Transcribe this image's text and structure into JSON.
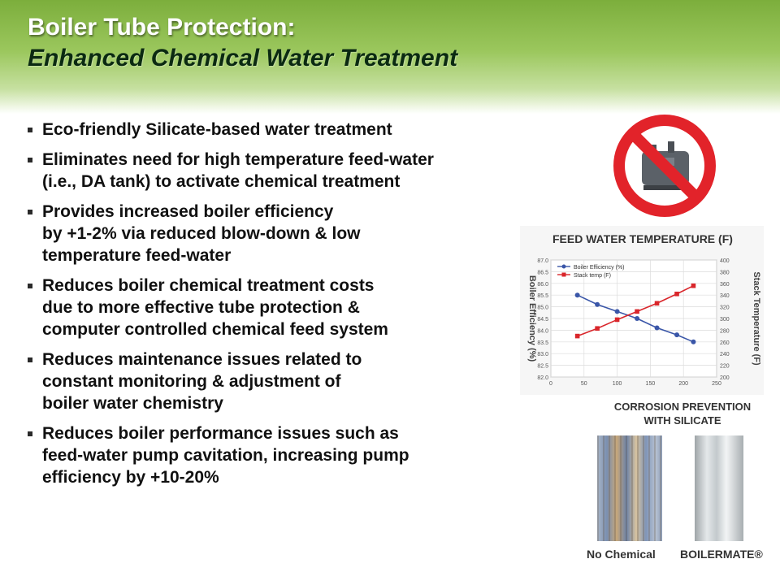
{
  "header": {
    "title_line1": "Boiler Tube Protection:",
    "title_line2": "Enhanced Chemical Water Treatment"
  },
  "bullets": [
    {
      "lines": [
        "Eco-friendly Silicate-based water treatment"
      ]
    },
    {
      "lines": [
        "Eliminates need for high temperature feed-water",
        "(i.e., DA tank) to activate chemical treatment"
      ]
    },
    {
      "lines": [
        "Provides increased boiler efficiency",
        "by +1-2% via reduced blow-down & low",
        "temperature feed-water"
      ]
    },
    {
      "lines": [
        "Reduces boiler chemical treatment costs",
        "due to more effective tube protection &",
        "computer controlled chemical feed system"
      ]
    },
    {
      "lines": [
        "Reduces maintenance issues related to",
        "constant monitoring & adjustment of",
        "boiler water chemistry"
      ]
    },
    {
      "lines": [
        "Reduces boiler performance issues such as",
        "feed-water pump cavitation, increasing pump",
        "efficiency by +10-20%"
      ]
    }
  ],
  "colors": {
    "header_green": "#8cbd4a",
    "efficiency_series": "#3a56a8",
    "stack_series": "#d9262b",
    "no_sign_red": "#e2232a"
  },
  "icons": {
    "prohibition": "no-sign-icon"
  },
  "chart_data": {
    "type": "line",
    "title": "FEED WATER TEMPERATURE (F)",
    "ylabel": "Boiler Efficiency (%)",
    "y2label": "Stack Temperature (F)",
    "x_ticks": [
      "0",
      "50",
      "100",
      "150",
      "200",
      "250"
    ],
    "y_ticks": [
      "87.0",
      "86.5",
      "86.0",
      "85.5",
      "85.0",
      "84.5",
      "84.0",
      "83.5",
      "83.0",
      "82.5",
      "82.0"
    ],
    "y2_ticks": [
      "400",
      "380",
      "360",
      "340",
      "320",
      "300",
      "280",
      "260",
      "240",
      "220",
      "200"
    ],
    "xlim": [
      0,
      250
    ],
    "ylim": [
      82,
      87
    ],
    "y2lim": [
      200,
      400
    ],
    "grid": true,
    "legend_position": "top-left",
    "series": [
      {
        "name": "Boiler Efficiency (%)",
        "axis": "left",
        "marker": "circle",
        "color": "#3a56a8",
        "x": [
          40,
          70,
          100,
          130,
          160,
          190,
          215
        ],
        "y": [
          85.5,
          85.1,
          84.8,
          84.5,
          84.1,
          83.8,
          83.5
        ]
      },
      {
        "name": "Stack temp (F)",
        "axis": "right",
        "marker": "square",
        "color": "#d9262b",
        "x": [
          40,
          70,
          100,
          130,
          160,
          190,
          215
        ],
        "y": [
          270,
          283,
          298,
          312,
          326,
          342,
          356
        ]
      }
    ]
  },
  "corrosion": {
    "title_line1": "CORROSION PREVENTION",
    "title_line2": "WITH SILICATE",
    "left_label": "No Chemical",
    "right_label": "BOILERMATE®"
  }
}
